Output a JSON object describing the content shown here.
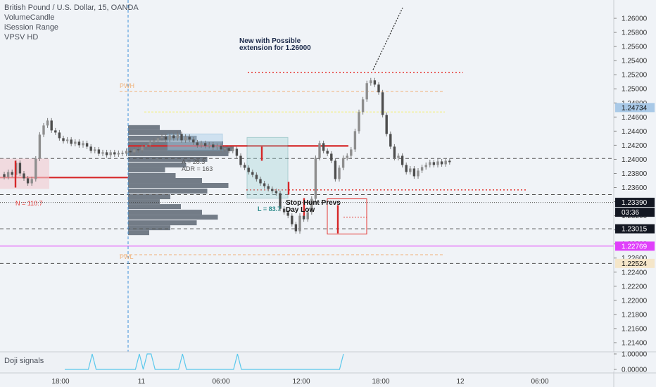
{
  "legend": {
    "symbol": "British Pound / U.S. Dollar, 15, OANDA",
    "indicator_1": "VolumeCandle",
    "indicator_2": "iSession Range",
    "indicator_3": "VPSV HD"
  },
  "subpane": {
    "label": "Doji signals"
  },
  "annotations": {
    "headline": "New with Possible\nextension for 1.26000",
    "stop_hunt": "Stop Hunt Prevs\nDay Low",
    "pwh": "PWH",
    "pwl": "PWL",
    "a_value": "A = 28.3",
    "adr_value": "ADR = 163",
    "n_value": "N = 110.7",
    "l_value": "L = 83.7"
  },
  "colors": {
    "background": "#f0f3f7",
    "candle": "#8e8e8e",
    "session_line": "#d62728",
    "magenta_line": "#e040fb",
    "price_tag_dark": "#131722",
    "price_tag_light": "#f5e6c9",
    "profile": "#5d6673",
    "doji": "#5ac8ec"
  },
  "chart_data": {
    "type": "line",
    "title": "British Pound / U.S. Dollar, 15, OANDA",
    "x_tick_labels": [
      "18:00",
      "11",
      "06:00",
      "12:00",
      "18:00",
      "12",
      "06:00"
    ],
    "y_tick_labels": [
      "1.26000",
      "1.25800",
      "1.25600",
      "1.25400",
      "1.25200",
      "1.25000",
      "1.24800",
      "1.24600",
      "1.24400",
      "1.24200",
      "1.24000",
      "1.23800",
      "1.23600",
      "1.23400",
      "1.23200",
      "1.23000",
      "1.22800",
      "1.22600",
      "1.22400",
      "1.22200",
      "1.22000",
      "1.21800",
      "1.21600",
      "1.21400"
    ],
    "ylim": [
      1.2132,
      1.2612
    ],
    "grid": false,
    "series": [
      {
        "values": [
          1.2375,
          1.2382,
          1.2378,
          1.2395,
          1.238,
          1.2373,
          1.2366,
          1.2372,
          1.2401,
          1.2435,
          1.2448,
          1.2455,
          1.2441,
          1.2438,
          1.243,
          1.2426,
          1.2428,
          1.2422,
          1.2425,
          1.242,
          1.2423,
          1.2418,
          1.2412,
          1.2414,
          1.2408,
          1.241,
          1.2406,
          1.241,
          1.2407,
          1.2409,
          1.2408,
          1.2412,
          1.241,
          1.2414,
          1.2413,
          1.2418,
          1.242,
          1.2424,
          1.2427,
          1.243,
          1.2432,
          1.2428,
          1.2434,
          1.243,
          1.2436,
          1.2427,
          1.2432,
          1.2428,
          1.2424,
          1.242,
          1.2423,
          1.2419,
          1.2421,
          1.2417,
          1.2419,
          1.2414,
          1.2416,
          1.2412,
          1.2415,
          1.2405,
          1.2392,
          1.2388,
          1.2382,
          1.2378,
          1.2372,
          1.2366,
          1.2362,
          1.2358,
          1.2355,
          1.2352,
          1.233,
          1.2325,
          1.232,
          1.2308,
          1.2298,
          1.232,
          1.2315,
          1.2325,
          1.2344,
          1.2402,
          1.2423,
          1.2412,
          1.2408,
          1.2398,
          1.2372,
          1.2388,
          1.2402,
          1.2405,
          1.2414,
          1.244,
          1.2467,
          1.2485,
          1.2508,
          1.2512,
          1.2506,
          1.2495,
          1.2463,
          1.2436,
          1.2418,
          1.2402,
          1.2405,
          1.2392,
          1.2382,
          1.2387,
          1.2376,
          1.2384,
          1.2389,
          1.2392,
          1.2396,
          1.2392,
          1.2397,
          1.2393,
          1.2398,
          1.2396
        ]
      }
    ],
    "levels": {
      "dotted_target_high": 1.2523,
      "pwh": 1.24963,
      "yellow_level": 1.24672,
      "session_red_upper": 1.2419,
      "dashed_1": 1.24012,
      "session_red_left": 1.23742,
      "red_dotted_low": 1.23566,
      "dashed_2": 1.23501,
      "current_dotted": 1.2339,
      "dashed_3": 1.23015,
      "magenta": 1.22769,
      "pwl": 1.22647,
      "dashed_4": 1.22524
    },
    "price_tags": [
      {
        "value": "1.24734",
        "y": 1.24734
      },
      {
        "value": "1.23390",
        "y": 1.2339
      },
      {
        "value": "03:36",
        "y": 1.2325
      },
      {
        "value": "1.23015",
        "y": 1.23015
      },
      {
        "value": "1.22769",
        "y": 1.22769
      },
      {
        "value": "1.22524",
        "y": 1.22524
      }
    ],
    "volume_profile": [
      {
        "price": 1.2445,
        "width": 0.3
      },
      {
        "price": 1.2438,
        "width": 0.5
      },
      {
        "price": 1.243,
        "width": 0.65
      },
      {
        "price": 1.2422,
        "width": 0.9
      },
      {
        "price": 1.2415,
        "width": 1.0
      },
      {
        "price": 1.2408,
        "width": 0.95
      },
      {
        "price": 1.24,
        "width": 0.75
      },
      {
        "price": 1.2392,
        "width": 0.55
      },
      {
        "price": 1.2385,
        "width": 0.35
      },
      {
        "price": 1.2377,
        "width": 0.45
      },
      {
        "price": 1.237,
        "width": 0.7
      },
      {
        "price": 1.2363,
        "width": 0.95
      },
      {
        "price": 1.2355,
        "width": 0.75
      },
      {
        "price": 1.2347,
        "width": 0.4
      },
      {
        "price": 1.234,
        "width": 0.3
      },
      {
        "price": 1.2333,
        "width": 0.5
      },
      {
        "price": 1.2325,
        "width": 0.7
      },
      {
        "price": 1.2318,
        "width": 0.85
      },
      {
        "price": 1.231,
        "width": 0.65
      },
      {
        "price": 1.2303,
        "width": 0.4
      },
      {
        "price": 1.2296,
        "width": 0.2
      }
    ],
    "doji_signals": [
      0,
      0,
      0,
      0,
      0,
      0,
      0,
      1,
      0,
      0,
      0,
      0,
      0,
      0,
      0,
      0,
      0,
      0,
      0,
      1,
      0,
      1,
      1,
      0,
      0,
      0,
      0,
      0,
      0,
      0,
      1,
      0,
      0,
      0,
      0,
      0,
      0,
      0,
      0,
      0,
      0,
      0,
      0,
      0,
      1,
      0,
      0,
      0,
      0,
      0,
      0,
      0,
      0,
      0,
      0,
      0,
      0,
      0,
      0,
      0,
      0,
      0,
      0,
      0,
      0,
      0,
      0,
      0,
      0,
      0,
      0,
      1
    ],
    "doji_axis_labels": [
      "1.00000",
      "0.00000"
    ]
  }
}
